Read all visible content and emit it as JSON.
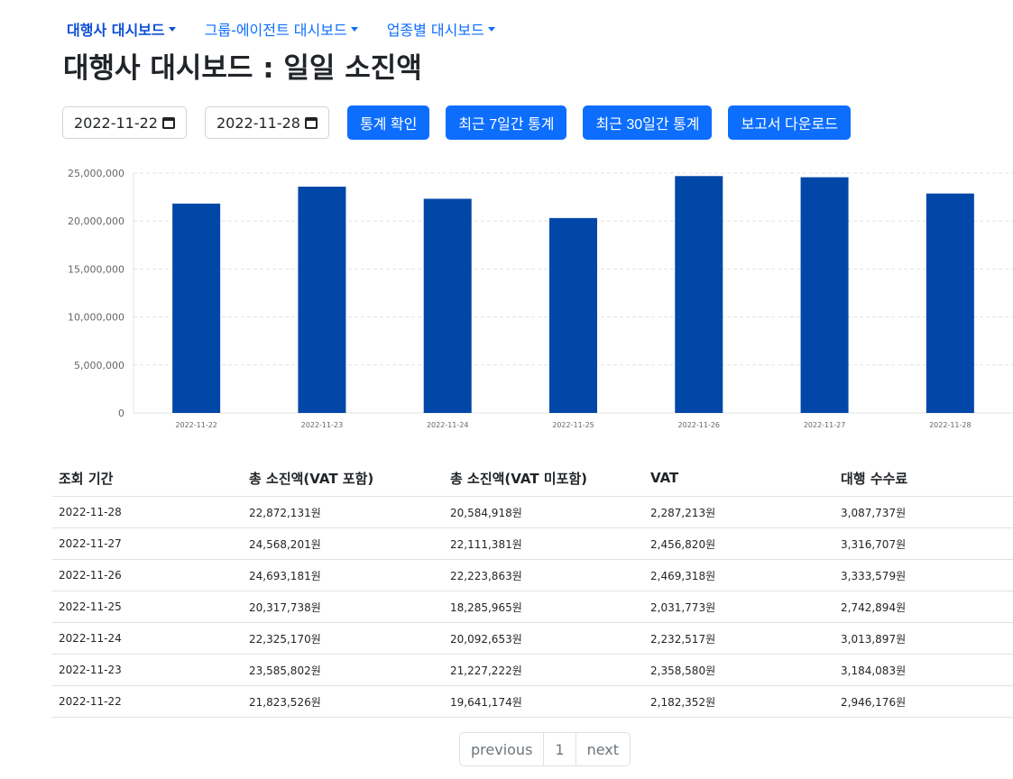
{
  "nav": [
    {
      "label": "대행사 대시보드",
      "active": true
    },
    {
      "label": "그룹-에이전트 대시보드",
      "active": false
    },
    {
      "label": "업종별 대시보드",
      "active": false
    }
  ],
  "page_title": "대행사 대시보드 : 일일 소진액",
  "controls": {
    "start_date": "2022-11-22",
    "end_date": "2022-11-28",
    "buttons": [
      "통계 확인",
      "최근 7일간 통계",
      "최근 30일간 통계",
      "보고서 다운로드"
    ]
  },
  "chart_data": {
    "type": "bar",
    "categories": [
      "2022-11-22",
      "2022-11-23",
      "2022-11-24",
      "2022-11-25",
      "2022-11-26",
      "2022-11-27",
      "2022-11-28"
    ],
    "values": [
      21823526,
      23585802,
      22325170,
      20317738,
      24693181,
      24568201,
      22872131
    ],
    "ylim": [
      0,
      25000000
    ],
    "yticks": [
      "0",
      "5,000,000",
      "10,000,000",
      "15,000,000",
      "20,000,000",
      "25,000,000"
    ],
    "bar_color": "#0047a8",
    "grid": true
  },
  "table": {
    "headers": [
      "조회 기간",
      "총 소진액(VAT 포함)",
      "총 소진액(VAT 미포함)",
      "VAT",
      "대행 수수료"
    ],
    "rows": [
      [
        "2022-11-28",
        "22,872,131원",
        "20,584,918원",
        "2,287,213원",
        "3,087,737원"
      ],
      [
        "2022-11-27",
        "24,568,201원",
        "22,111,381원",
        "2,456,820원",
        "3,316,707원"
      ],
      [
        "2022-11-26",
        "24,693,181원",
        "22,223,863원",
        "2,469,318원",
        "3,333,579원"
      ],
      [
        "2022-11-25",
        "20,317,738원",
        "18,285,965원",
        "2,031,773원",
        "2,742,894원"
      ],
      [
        "2022-11-24",
        "22,325,170원",
        "20,092,653원",
        "2,232,517원",
        "3,013,897원"
      ],
      [
        "2022-11-23",
        "23,585,802원",
        "21,227,222원",
        "2,358,580원",
        "3,184,083원"
      ],
      [
        "2022-11-22",
        "21,823,526원",
        "19,641,174원",
        "2,182,352원",
        "2,946,176원"
      ]
    ]
  },
  "pagination": {
    "previous": "previous",
    "page": "1",
    "next": "next"
  }
}
